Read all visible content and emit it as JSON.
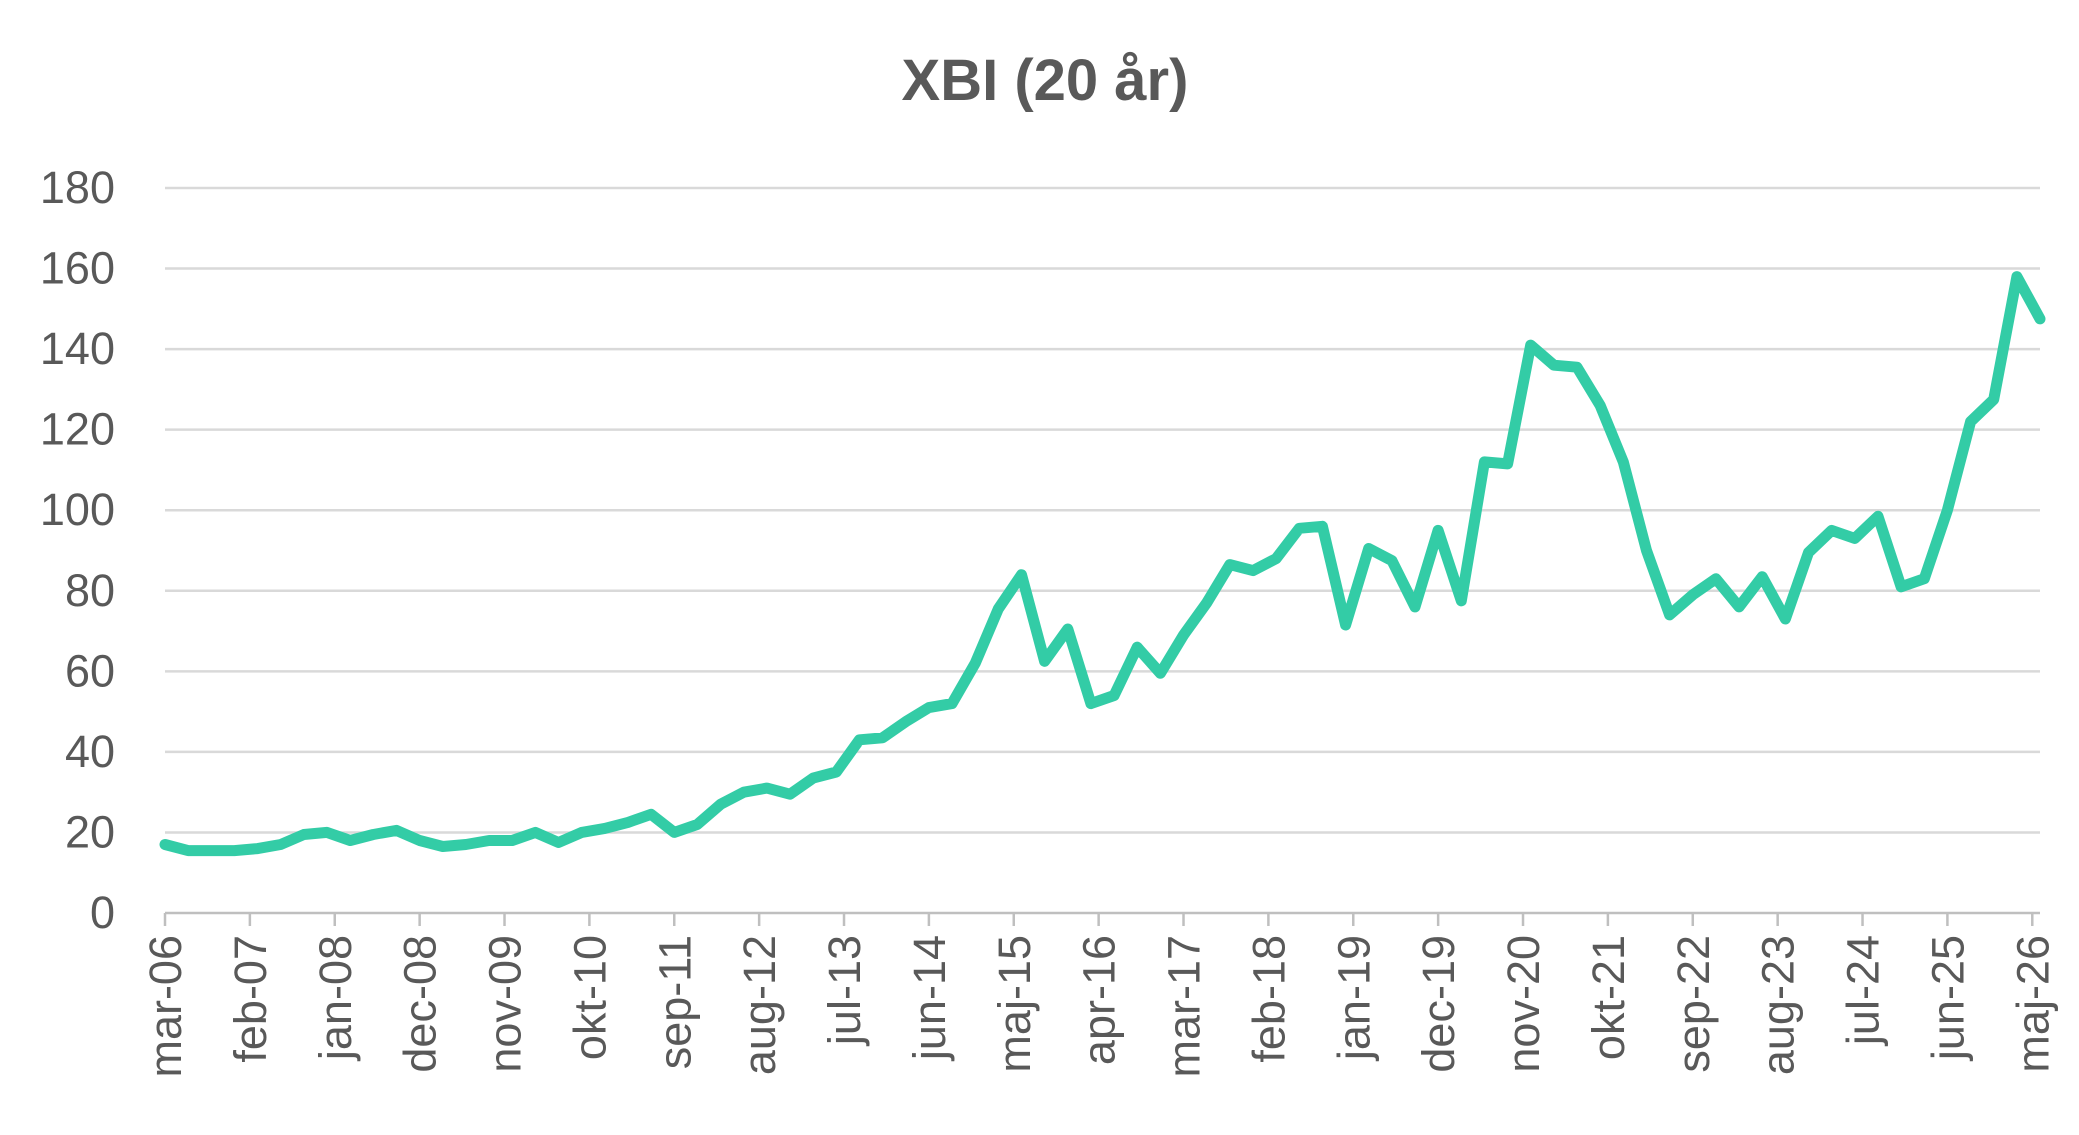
{
  "chart_data": {
    "type": "line",
    "title": "XBI (20 år)",
    "xlabel": "",
    "ylabel": "",
    "ylim": [
      0,
      180
    ],
    "yticks": [
      0,
      20,
      40,
      60,
      80,
      100,
      120,
      140,
      160,
      180
    ],
    "xticks": [
      "mar-06",
      "feb-07",
      "jan-08",
      "dec-08",
      "nov-09",
      "okt-10",
      "sep-11",
      "aug-12",
      "jul-13",
      "jun-14",
      "maj-15",
      "apr-16",
      "mar-17",
      "feb-18",
      "jan-19",
      "dec-19",
      "nov-20",
      "okt-21",
      "sep-22",
      "aug-23",
      "jul-24",
      "jun-25",
      "maj-26"
    ],
    "grid": true,
    "legend": "none",
    "color": "#33cca6",
    "series": [
      {
        "x": [
          "2006-03",
          "2006-06",
          "2006-09",
          "2006-12",
          "2007-03",
          "2007-06",
          "2007-09",
          "2007-12",
          "2008-03",
          "2008-06",
          "2008-09",
          "2008-12",
          "2009-03",
          "2009-06",
          "2009-09",
          "2009-12",
          "2010-03",
          "2010-06",
          "2010-09",
          "2010-12",
          "2011-03",
          "2011-06",
          "2011-09",
          "2011-12",
          "2012-03",
          "2012-06",
          "2012-09",
          "2012-12",
          "2013-03",
          "2013-06",
          "2013-09",
          "2013-12",
          "2014-03",
          "2014-06",
          "2014-09",
          "2014-12",
          "2015-03",
          "2015-06",
          "2015-09",
          "2015-12",
          "2016-03",
          "2016-06",
          "2016-09",
          "2016-12",
          "2017-03",
          "2017-06",
          "2017-09",
          "2017-12",
          "2018-03",
          "2018-06",
          "2018-09",
          "2018-12",
          "2019-03",
          "2019-06",
          "2019-09",
          "2019-12",
          "2020-03",
          "2020-06",
          "2020-09",
          "2020-12",
          "2021-03",
          "2021-06",
          "2021-09",
          "2021-12",
          "2022-03",
          "2022-06",
          "2022-09",
          "2022-12",
          "2023-03",
          "2023-06",
          "2023-09",
          "2023-12",
          "2024-03",
          "2024-06",
          "2024-09",
          "2024-12",
          "2025-03",
          "2025-06",
          "2025-09",
          "2025-12",
          "2026-03",
          "2026-06"
        ],
        "values": [
          17,
          15.5,
          15.5,
          15.5,
          16,
          17,
          19.5,
          20,
          18,
          19.5,
          20.5,
          18,
          16.5,
          17,
          18,
          18,
          20,
          17.5,
          20,
          21,
          22.5,
          24.5,
          20,
          22,
          27,
          30,
          31,
          29.5,
          33.5,
          35,
          43,
          43.5,
          47.5,
          51,
          52,
          62,
          75.5,
          84,
          62.5,
          70.5,
          52,
          54,
          66,
          59.5,
          69,
          77,
          86.5,
          85,
          88,
          95.5,
          96,
          71.5,
          90.5,
          87.5,
          76,
          95,
          77.5,
          112,
          111.5,
          141,
          136,
          135.5,
          126,
          112,
          90,
          74,
          79,
          83,
          76,
          83.5,
          73,
          89.5,
          95,
          93,
          98.5,
          81,
          83,
          100,
          122,
          127.5,
          158,
          147.5
        ]
      }
    ]
  }
}
